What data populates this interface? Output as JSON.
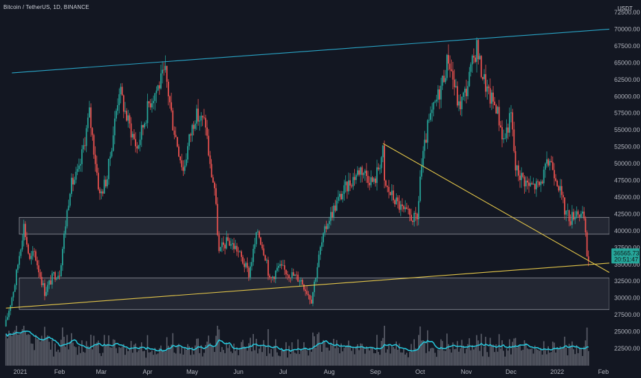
{
  "header": {
    "symbol_title": "Bitcoin / TetherUS, 1D, BINANCE"
  },
  "colors": {
    "background": "#131722",
    "up": "#26a69a",
    "down": "#ef5350",
    "channel_line": "#2aa7c9",
    "trendline": "#e6c84a",
    "zone_fill": "#2a2e39",
    "zone_border": "#9598a1",
    "volume_ma": "#26c6da",
    "volume_bar": "#787b86",
    "price_tag": "#26a69a"
  },
  "chart_data": {
    "type": "candlestick",
    "title": "Bitcoin / TetherUS, 1D, BINANCE",
    "unit_label": "USDT",
    "y_range": [
      20000,
      73000
    ],
    "y_ticks": [
      22500,
      25000,
      27500,
      30000,
      32500,
      35000,
      37500,
      40000,
      42500,
      45000,
      47500,
      50000,
      52500,
      55000,
      57500,
      60000,
      62500,
      65000,
      67500,
      70000,
      72500
    ],
    "y_tick_labels": [
      "22500.00",
      "25000.00",
      "27500.00",
      "30000.00",
      "32500.00",
      "35000.00",
      "37500.00",
      "40000.00",
      "42500.00",
      "45000.00",
      "47500.00",
      "50000.00",
      "52500.00",
      "55000.00",
      "57500.00",
      "60000.00",
      "62500.00",
      "65000.00",
      "67500.00",
      "70000.00",
      "72500.00"
    ],
    "x_range": [
      "2020-12-23",
      "2022-02-05"
    ],
    "x_ticks": [
      {
        "date": "2021-01-01",
        "label": "2021"
      },
      {
        "date": "2021-02-01",
        "label": "Feb"
      },
      {
        "date": "2021-03-01",
        "label": "Mar"
      },
      {
        "date": "2021-04-01",
        "label": "Apr"
      },
      {
        "date": "2021-05-01",
        "label": "May"
      },
      {
        "date": "2021-06-01",
        "label": "Jun"
      },
      {
        "date": "2021-07-01",
        "label": "Jul"
      },
      {
        "date": "2021-08-01",
        "label": "Aug"
      },
      {
        "date": "2021-09-01",
        "label": "Sep"
      },
      {
        "date": "2021-10-01",
        "label": "Oct"
      },
      {
        "date": "2021-11-01",
        "label": "Nov"
      },
      {
        "date": "2021-12-01",
        "label": "Dec"
      },
      {
        "date": "2022-01-01",
        "label": "2022"
      },
      {
        "date": "2022-02-01",
        "label": "Feb"
      }
    ],
    "candle_start": "2020-12-27",
    "candle_end": "2022-01-22",
    "close_anchors": [
      [
        "2020-12-27",
        26300
      ],
      [
        "2021-01-02",
        32200
      ],
      [
        "2021-01-08",
        40800
      ],
      [
        "2021-01-12",
        35500
      ],
      [
        "2021-01-15",
        36800
      ],
      [
        "2021-01-22",
        30900
      ],
      [
        "2021-01-28",
        33400
      ],
      [
        "2021-02-01",
        33800
      ],
      [
        "2021-02-08",
        46500
      ],
      [
        "2021-02-14",
        48800
      ],
      [
        "2021-02-21",
        57500
      ],
      [
        "2021-02-28",
        45200
      ],
      [
        "2021-03-05",
        48000
      ],
      [
        "2021-03-13",
        61200
      ],
      [
        "2021-03-18",
        56900
      ],
      [
        "2021-03-25",
        52300
      ],
      [
        "2021-04-02",
        59000
      ],
      [
        "2021-04-13",
        63500
      ],
      [
        "2021-04-18",
        56000
      ],
      [
        "2021-04-25",
        49000
      ],
      [
        "2021-04-29",
        53600
      ],
      [
        "2021-05-03",
        57200
      ],
      [
        "2021-05-10",
        56000
      ],
      [
        "2021-05-13",
        49400
      ],
      [
        "2021-05-16",
        46400
      ],
      [
        "2021-05-19",
        36700
      ],
      [
        "2021-05-21",
        37500
      ],
      [
        "2021-05-25",
        38500
      ],
      [
        "2021-05-31",
        37300
      ],
      [
        "2021-06-08",
        33600
      ],
      [
        "2021-06-14",
        40100
      ],
      [
        "2021-06-20",
        35600
      ],
      [
        "2021-06-22",
        32500
      ],
      [
        "2021-06-28",
        34600
      ],
      [
        "2021-07-05",
        33700
      ],
      [
        "2021-07-13",
        32700
      ],
      [
        "2021-07-20",
        29800
      ],
      [
        "2021-07-26",
        37300
      ],
      [
        "2021-07-31",
        41500
      ],
      [
        "2021-08-07",
        44600
      ],
      [
        "2021-08-14",
        47000
      ],
      [
        "2021-08-22",
        49300
      ],
      [
        "2021-08-31",
        47100
      ],
      [
        "2021-09-06",
        51800
      ],
      [
        "2021-09-07",
        46900
      ],
      [
        "2021-09-13",
        44900
      ],
      [
        "2021-09-20",
        42800
      ],
      [
        "2021-09-29",
        41500
      ],
      [
        "2021-10-01",
        48100
      ],
      [
        "2021-10-06",
        55300
      ],
      [
        "2021-10-15",
        61500
      ],
      [
        "2021-10-20",
        65900
      ],
      [
        "2021-10-27",
        58400
      ],
      [
        "2021-11-01",
        61000
      ],
      [
        "2021-11-08",
        67500
      ],
      [
        "2021-11-10",
        64800
      ],
      [
        "2021-11-16",
        60100
      ],
      [
        "2021-11-21",
        58600
      ],
      [
        "2021-11-26",
        53500
      ],
      [
        "2021-12-01",
        57200
      ],
      [
        "2021-12-04",
        49200
      ],
      [
        "2021-12-13",
        46700
      ],
      [
        "2021-12-20",
        46700
      ],
      [
        "2021-12-27",
        50700
      ],
      [
        "2022-01-01",
        47700
      ],
      [
        "2022-01-06",
        43100
      ],
      [
        "2022-01-10",
        41800
      ],
      [
        "2022-01-14",
        43100
      ],
      [
        "2022-01-19",
        41700
      ],
      [
        "2022-01-21",
        36400
      ],
      [
        "2022-01-22",
        35800
      ]
    ],
    "last_price": {
      "value": 36565.73,
      "label": "36565.73",
      "countdown": "20:51:47"
    },
    "annotations": {
      "upper_channel": {
        "from": [
          "2020-12-31",
          63500
        ],
        "to": [
          "2022-02-05",
          70000
        ]
      },
      "lower_trendline": {
        "from": [
          "2020-12-27",
          28500
        ],
        "to": [
          "2022-02-05",
          35200
        ]
      },
      "descending_trendline": {
        "from": [
          "2021-09-06",
          53000
        ],
        "to": [
          "2022-02-05",
          33800
        ]
      },
      "zones": [
        {
          "top": 42000,
          "bottom": 39500
        },
        {
          "top": 33000,
          "bottom": 28300
        }
      ]
    },
    "volume_panel": {
      "has_moving_average": true
    }
  }
}
